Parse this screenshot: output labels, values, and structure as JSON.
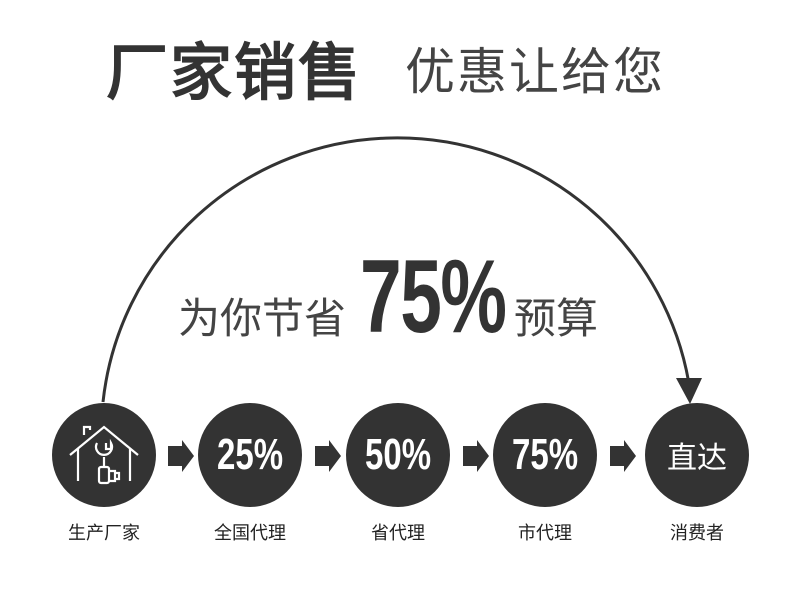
{
  "title": {
    "bold": "厂家销售",
    "light": "优惠让给您"
  },
  "savings": {
    "prefix": "为你节省",
    "percent": "75%",
    "suffix": "预算"
  },
  "steps": [
    {
      "icon": "house-wrench-icon",
      "label": "生产厂家"
    },
    {
      "value": "25%",
      "label": "全国代理"
    },
    {
      "value": "50%",
      "label": "省代理"
    },
    {
      "value": "75%",
      "label": "市代理"
    },
    {
      "value": "直达",
      "label": "消费者"
    }
  ],
  "colors": {
    "circle": "#333333",
    "background": "#ffffff"
  }
}
